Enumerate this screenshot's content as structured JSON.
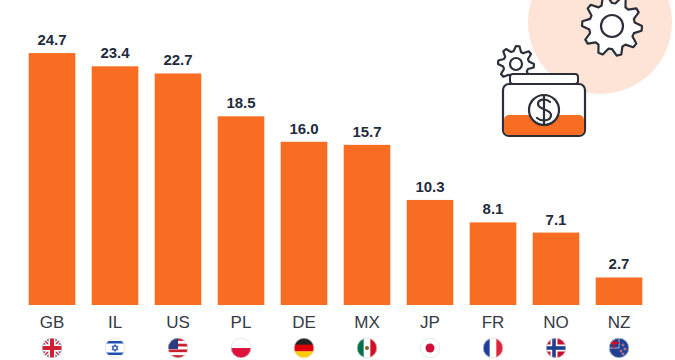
{
  "chart_data": {
    "type": "bar",
    "categories": [
      "GB",
      "IL",
      "US",
      "PL",
      "DE",
      "MX",
      "JP",
      "FR",
      "NO",
      "NZ"
    ],
    "values": [
      24.7,
      23.4,
      22.7,
      18.5,
      16.0,
      15.7,
      10.3,
      8.1,
      7.1,
      2.7
    ],
    "value_labels": [
      "24.7",
      "23.4",
      "22.7",
      "18.5",
      "16.0",
      "15.7",
      "10.3",
      "8.1",
      "7.1",
      "2.7"
    ],
    "color": "#f96d22",
    "ylim": [
      0,
      25
    ],
    "grid": false,
    "data_labels": true,
    "tick_labels": false
  }
}
